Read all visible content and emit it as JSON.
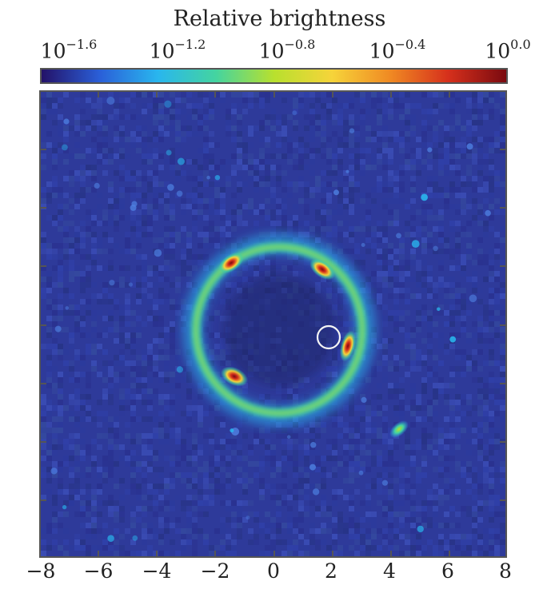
{
  "colorbar": {
    "title": "Relative brightness",
    "ticks": [
      {
        "base": "10",
        "exp": "−1.6"
      },
      {
        "base": "10",
        "exp": "−1.2"
      },
      {
        "base": "10",
        "exp": "−0.8"
      },
      {
        "base": "10",
        "exp": "−0.4"
      },
      {
        "base": "10",
        "exp": "0.0"
      }
    ],
    "colormap": [
      "#241268",
      "#2a5fd8",
      "#29b6ee",
      "#44d4a0",
      "#b8e02e",
      "#f6d43a",
      "#f08a23",
      "#d6301c",
      "#7a0a10"
    ]
  },
  "image": {
    "description_free": true,
    "x_ticks": [
      "−8",
      "−6",
      "−4",
      "−2",
      "0",
      "2",
      "4",
      "6",
      "8"
    ],
    "x_range": [
      -8,
      8
    ],
    "y_range": [
      -8,
      8
    ],
    "background_color": "#2e3a9a",
    "ring": {
      "center": [
        0.1,
        0.15
      ],
      "radius": 2.55
    },
    "aperture_circle": {
      "center": [
        1.85,
        0.0
      ],
      "radius": 0.4
    }
  }
}
